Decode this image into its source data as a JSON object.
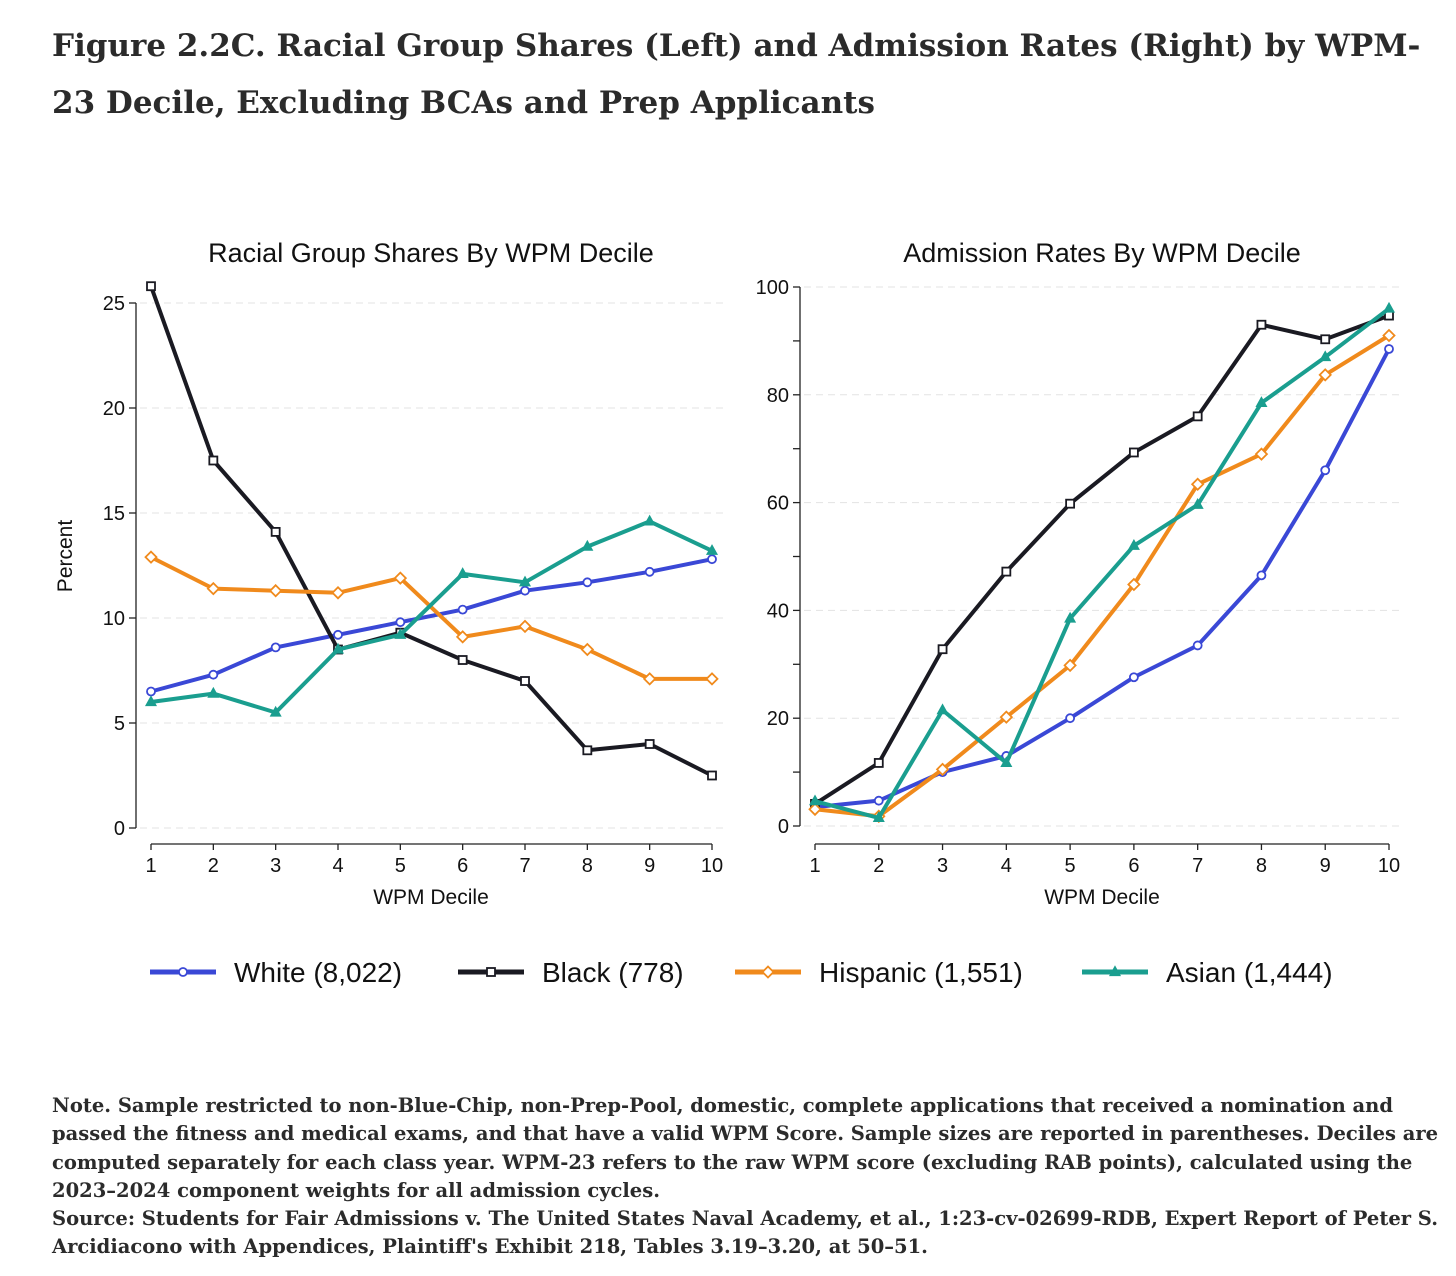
{
  "figure": {
    "title": "Figure 2.2C. Racial Group Shares (Left) and Admission Rates (Right) by WPM-23 Decile, Excluding BCAs and Prep Applicants",
    "note": "Note. Sample restricted to non-Blue-Chip, non-Prep-Pool, domestic, complete applications that received a nomination and passed the fitness and medical exams, and that have a valid WPM Score. Sample sizes are reported in parentheses. Deciles are computed separately for each class year. WPM-23 refers to the raw WPM score (excluding RAB points), calculated using the 2023–2024 component weights for all admission cycles.",
    "source": "Source: Students for Fair Admissions v. The United States Naval Academy, et al., 1:23-cv-02699-RDB, Expert Report of Peter S. Arcidiacono with Appendices, Plaintiff's Exhibit 218, Tables 3.19–3.20, at 50–51."
  },
  "legend": {
    "placement": "bottom",
    "items": [
      {
        "label": "White (8,022)",
        "color": "#3a48d6",
        "marker": "circle"
      },
      {
        "label": "Black (778)",
        "color": "#1a1a22",
        "marker": "square"
      },
      {
        "label": "Hispanic (1,551)",
        "color": "#f08a1c",
        "marker": "diamond"
      },
      {
        "label": "Asian (1,444)",
        "color": "#1a9e8f",
        "marker": "triangle"
      }
    ]
  },
  "chart_data": [
    {
      "type": "line",
      "title": "Racial Group Shares By WPM Decile",
      "xlabel": "WPM Decile",
      "ylabel": "Percent",
      "x": [
        1,
        2,
        3,
        4,
        5,
        6,
        7,
        8,
        9,
        10
      ],
      "xlim": [
        1,
        10
      ],
      "ylim": [
        0,
        25
      ],
      "yticks": [
        0,
        5,
        10,
        15,
        20,
        25
      ],
      "minor_yticks": [],
      "grid": true,
      "series": [
        {
          "name": "White (8,022)",
          "color": "#3a48d6",
          "marker": "circle",
          "values": [
            6.5,
            7.3,
            8.6,
            9.2,
            9.8,
            10.4,
            11.3,
            11.7,
            12.2,
            12.8
          ]
        },
        {
          "name": "Black (778)",
          "color": "#1a1a22",
          "marker": "square",
          "values": [
            25.8,
            17.5,
            14.1,
            8.5,
            9.3,
            8.0,
            7.0,
            3.7,
            4.0,
            2.5
          ]
        },
        {
          "name": "Hispanic (1,551)",
          "color": "#f08a1c",
          "marker": "diamond",
          "values": [
            12.9,
            11.4,
            11.3,
            11.2,
            11.9,
            9.1,
            9.6,
            8.5,
            7.1,
            7.1
          ]
        },
        {
          "name": "Asian (1,444)",
          "color": "#1a9e8f",
          "marker": "triangle",
          "values": [
            6.0,
            6.4,
            5.5,
            8.5,
            9.2,
            12.1,
            11.7,
            13.4,
            14.6,
            13.2
          ]
        }
      ]
    },
    {
      "type": "line",
      "title": "Admission Rates By WPM Decile",
      "xlabel": "WPM Decile",
      "ylabel": "",
      "x": [
        1,
        2,
        3,
        4,
        5,
        6,
        7,
        8,
        9,
        10
      ],
      "xlim": [
        1,
        10
      ],
      "ylim": [
        0,
        100
      ],
      "yticks": [
        0,
        20,
        40,
        60,
        80,
        100
      ],
      "minor_yticks": [
        10,
        30,
        50,
        70,
        90
      ],
      "grid": true,
      "series": [
        {
          "name": "White (8,022)",
          "color": "#3a48d6",
          "marker": "circle",
          "values": [
            3.5,
            4.7,
            10.0,
            13.0,
            20.0,
            27.6,
            33.5,
            46.5,
            66.0,
            88.5
          ]
        },
        {
          "name": "Black (778)",
          "color": "#1a1a22",
          "marker": "square",
          "values": [
            4.1,
            11.7,
            32.8,
            47.2,
            59.8,
            69.3,
            76.0,
            93.0,
            90.3,
            94.7
          ]
        },
        {
          "name": "Hispanic (1,551)",
          "color": "#f08a1c",
          "marker": "diamond",
          "values": [
            3.1,
            1.8,
            10.5,
            20.2,
            29.8,
            44.8,
            63.4,
            69.0,
            83.7,
            91.0
          ]
        },
        {
          "name": "Asian (1,444)",
          "color": "#1a9e8f",
          "marker": "triangle",
          "values": [
            4.6,
            1.5,
            21.5,
            11.7,
            38.5,
            52.0,
            59.6,
            78.5,
            87.0,
            96.0
          ]
        }
      ]
    }
  ]
}
